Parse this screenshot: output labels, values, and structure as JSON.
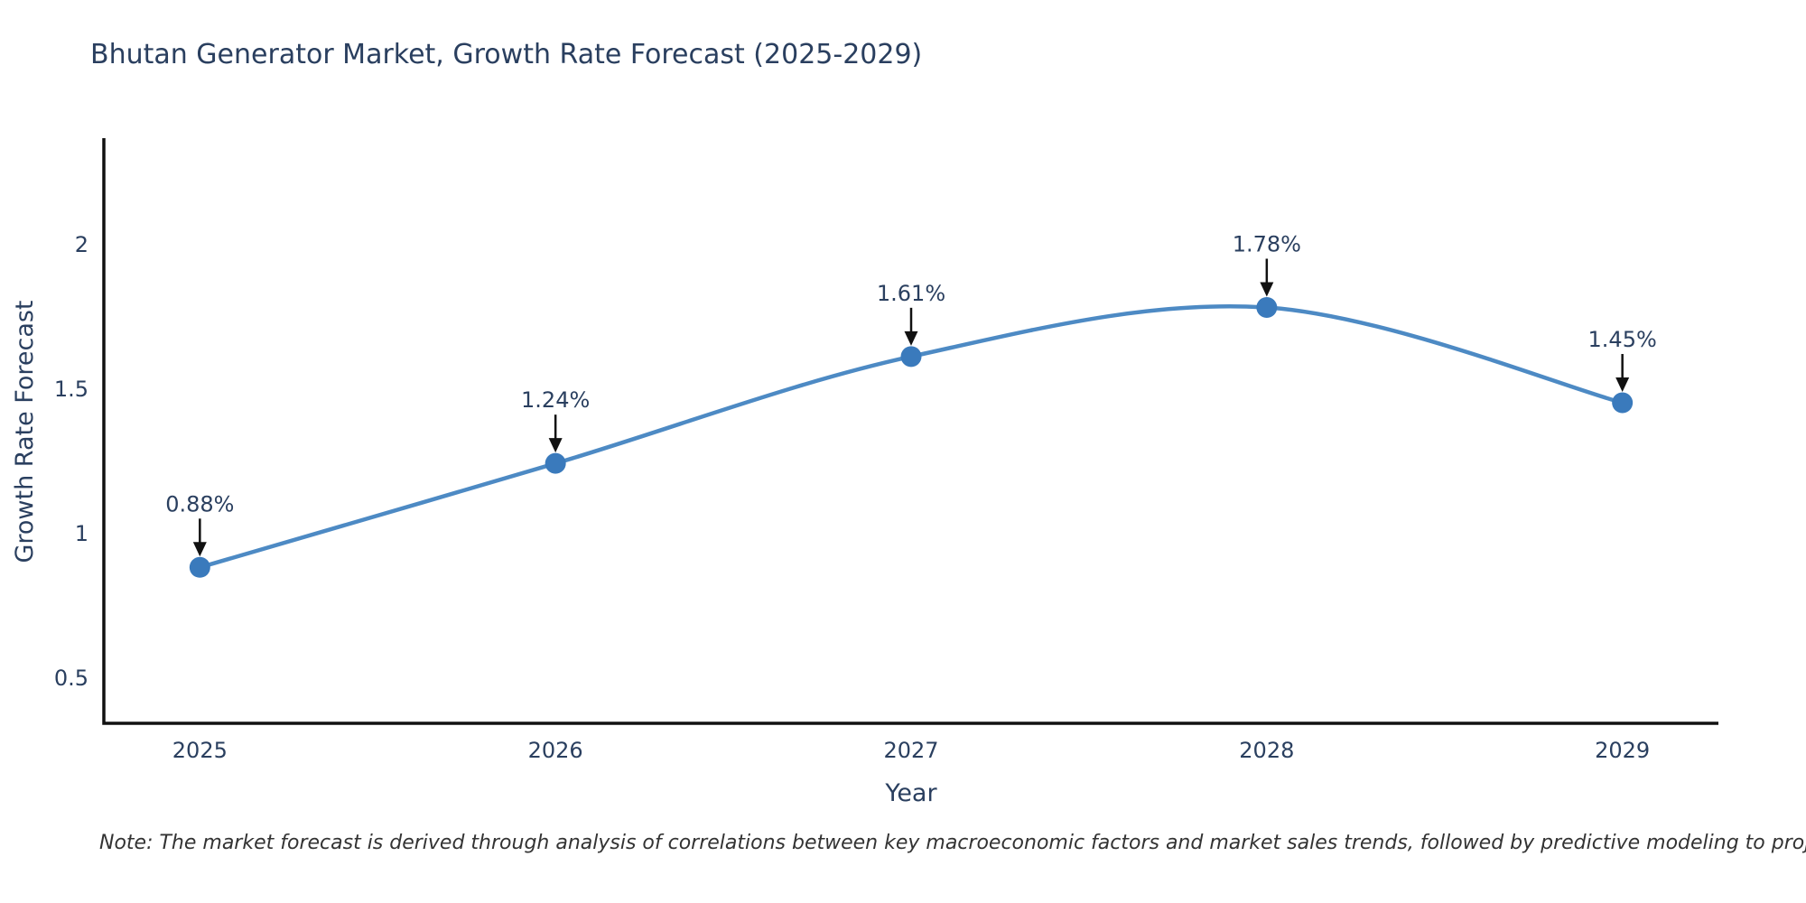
{
  "chart_data": {
    "type": "line",
    "title": "Bhutan Generator Market, Growth Rate Forecast (2025-2029)",
    "xlabel": "Year",
    "ylabel": "Growth Rate Forecast",
    "x": [
      2025,
      2026,
      2027,
      2028,
      2029
    ],
    "series": [
      {
        "name": "Growth Rate Forecast",
        "values": [
          0.88,
          1.24,
          1.61,
          1.78,
          1.45
        ]
      }
    ],
    "point_labels": [
      "0.88%",
      "1.24%",
      "1.61%",
      "1.78%",
      "1.45%"
    ],
    "xtick_labels": [
      "2025",
      "2026",
      "2027",
      "2028",
      "2029"
    ],
    "ytick_values": [
      0.5,
      1,
      1.5,
      2
    ],
    "ytick_labels": [
      "0.5",
      "1",
      "1.5",
      "2"
    ],
    "xlim": [
      2024.73,
      2029.27
    ],
    "ylim": [
      0.34,
      2.36
    ],
    "grid": false,
    "legend": "none",
    "line_shape": "spline",
    "colors": {
      "line": "#4d8ac4",
      "marker": "#3a7abc",
      "axis": "#111111",
      "arrow": "#111111",
      "text": "#2a3f5f",
      "note": "#333333",
      "background": "#ffffff"
    }
  },
  "note": "Note: The market forecast is derived through analysis of correlations between key macroeconomic factors and market sales trends, followed by predictive modeling to project future sales"
}
